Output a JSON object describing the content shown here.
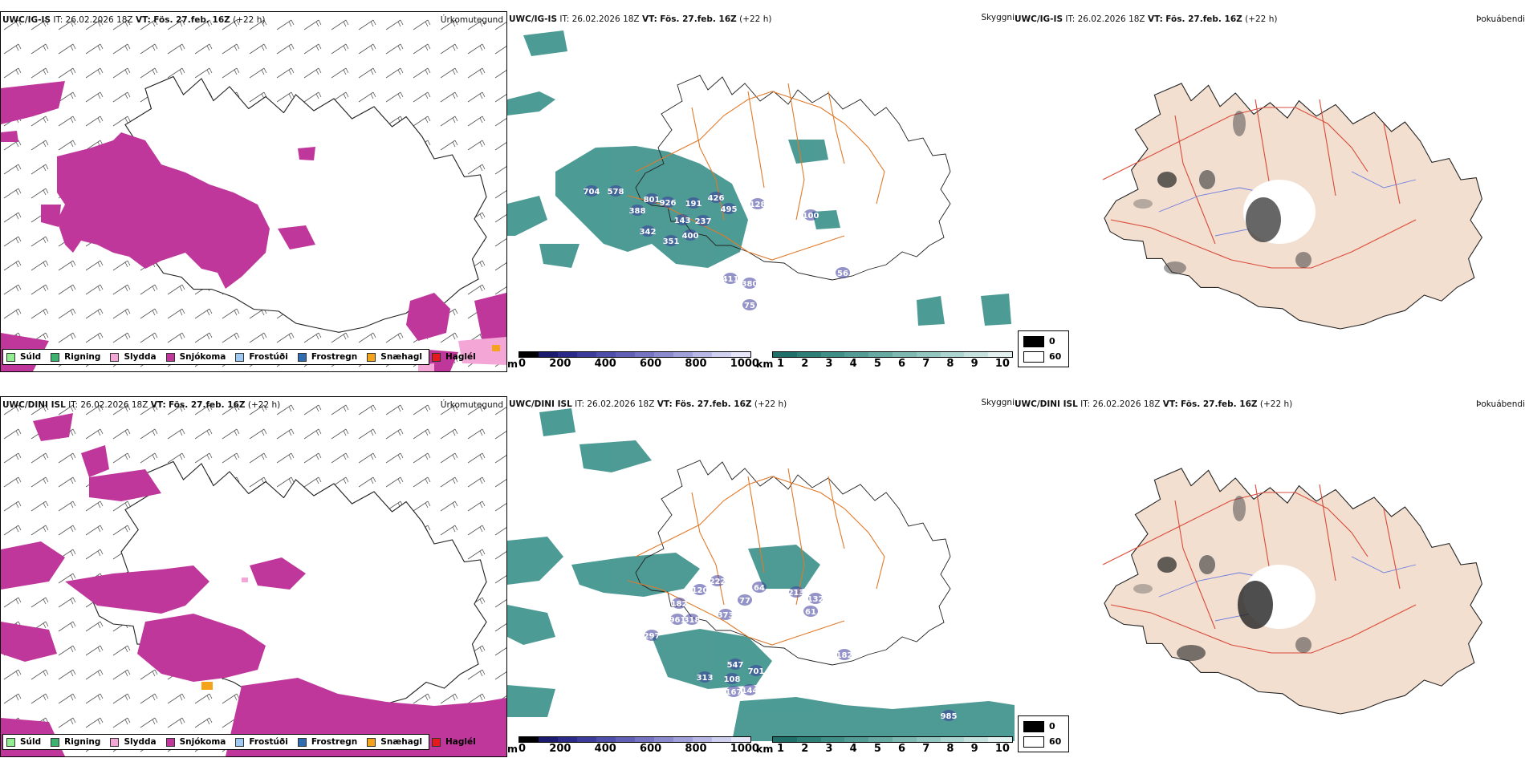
{
  "rows": [
    {
      "model": "UWC/IG-IS",
      "it_label": "IT:",
      "it_value": "26.02.2026 18Z",
      "vt_label": "VT:",
      "vt_value": "Fös. 27.feb. 16Z",
      "lead": "(+22 h)",
      "precip_title": "Úrkomutegund",
      "visibility_title": "Skyggni",
      "cloud_title": "Þokuábendi",
      "cloudbase_labels": [
        "704",
        "578",
        "801",
        "388",
        "926",
        "191",
        "426",
        "495",
        "128",
        "143",
        "237",
        "100",
        "342",
        "400",
        "351",
        "411",
        "380",
        "75",
        "56"
      ]
    },
    {
      "model": "UWC/DINI ISL",
      "it_label": "IT:",
      "it_value": "26.02.2026 18Z",
      "vt_label": "VT:",
      "vt_value": "Fös. 27.feb. 16Z",
      "lead": "(+22 h)",
      "precip_title": "Úrkomutegund",
      "visibility_title": "Skyggni",
      "cloud_title": "Þokuábendi",
      "cloudbase_labels": [
        "222",
        "120",
        "64",
        "213",
        "132",
        "182",
        "77",
        "961",
        "318",
        "373",
        "61",
        "297",
        "182",
        "547",
        "701",
        "313",
        "108",
        "167",
        "144",
        "985"
      ]
    }
  ],
  "precip_legend": [
    {
      "label": "Súld",
      "color": "#90ee90"
    },
    {
      "label": "Rigning",
      "color": "#3cb371"
    },
    {
      "label": "Slydda",
      "color": "#f4a6d7"
    },
    {
      "label": "Snjókoma",
      "color": "#c0379b"
    },
    {
      "label": "Frostúði",
      "color": "#9ec9f2"
    },
    {
      "label": "Frostregn",
      "color": "#2f6db3"
    },
    {
      "label": "Snæhagl",
      "color": "#f5a31a"
    },
    {
      "label": "Haglél",
      "color": "#e41a1c"
    }
  ],
  "height_scale": {
    "unit": "m",
    "ticks": [
      "0",
      "200",
      "400",
      "600",
      "800",
      "1000"
    ],
    "colors": [
      "#000000",
      "#1a1a6e",
      "#2a2a8a",
      "#3b3b9c",
      "#4d4daa",
      "#6060b6",
      "#7474c2",
      "#8a8ace",
      "#a0a0da",
      "#b8b8e6",
      "#d0d0f0",
      "#e6e6f8"
    ]
  },
  "visibility_scale": {
    "unit": "km",
    "ticks": [
      "1",
      "2",
      "3",
      "4",
      "5",
      "6",
      "7",
      "8",
      "9",
      "10"
    ],
    "colors": [
      "#1f6f6a",
      "#2f7f79",
      "#3f8f88",
      "#539c96",
      "#67aaa4",
      "#7db8b2",
      "#94c6c1",
      "#acd4d0",
      "#c6e2df",
      "#e2f0ef"
    ]
  },
  "fog_legend": [
    {
      "label": "0",
      "color": "#000000"
    },
    {
      "label": "60",
      "color": "#ffffff"
    }
  ],
  "colors": {
    "snow": "#c0379b",
    "sleet": "#f4a6d7",
    "fog_green": "#2f8a83",
    "roads": "#e07a2a",
    "land_tan": "#f3dfd0",
    "red_roads": "#d94a3a",
    "rivers": "#6b7be0"
  }
}
